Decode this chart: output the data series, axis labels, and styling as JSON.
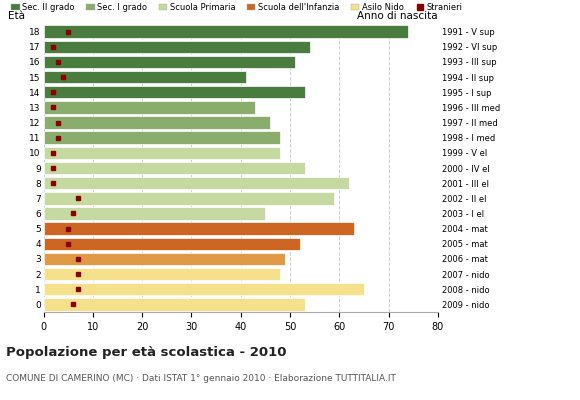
{
  "ages": [
    18,
    17,
    16,
    15,
    14,
    13,
    12,
    11,
    10,
    9,
    8,
    7,
    6,
    5,
    4,
    3,
    2,
    1,
    0
  ],
  "years": [
    "1991 - V sup",
    "1992 - VI sup",
    "1993 - III sup",
    "1994 - II sup",
    "1995 - I sup",
    "1996 - III med",
    "1997 - II med",
    "1998 - I med",
    "1999 - V el",
    "2000 - IV el",
    "2001 - III el",
    "2002 - II el",
    "2003 - I el",
    "2004 - mat",
    "2005 - mat",
    "2006 - mat",
    "2007 - nido",
    "2008 - nido",
    "2009 - nido"
  ],
  "values": [
    74,
    54,
    51,
    41,
    53,
    43,
    46,
    48,
    48,
    53,
    62,
    59,
    45,
    63,
    52,
    49,
    48,
    65,
    53
  ],
  "stranieri": [
    5,
    2,
    3,
    4,
    2,
    2,
    3,
    3,
    2,
    2,
    2,
    7,
    6,
    5,
    5,
    7,
    7,
    7,
    6
  ],
  "bar_colors": [
    "#4a7c3f",
    "#4a7c3f",
    "#4a7c3f",
    "#4a7c3f",
    "#4a7c3f",
    "#8aad6e",
    "#8aad6e",
    "#8aad6e",
    "#c5d9a0",
    "#c5d9a0",
    "#c5d9a0",
    "#c5d9a0",
    "#c5d9a0",
    "#cc6622",
    "#cc6622",
    "#e09945",
    "#f5e08b",
    "#f5e08b",
    "#f5e08b"
  ],
  "legend_labels": [
    "Sec. II grado",
    "Sec. I grado",
    "Scuola Primaria",
    "Scuola dell'Infanzia",
    "Asilo Nido",
    "Stranieri"
  ],
  "legend_colors": [
    "#4a7c3f",
    "#8aad6e",
    "#c5d9a0",
    "#cc6622",
    "#f5e08b",
    "#8b0000"
  ],
  "title": "Popolazione per età scolastica - 2010",
  "subtitle": "COMUNE DI CAMERINO (MC) · Dati ISTAT 1° gennaio 2010 · Elaborazione TUTTITALIA.IT",
  "xlabel_eta": "Età",
  "xlabel_anno": "Anno di nascita",
  "xlim": [
    0,
    80
  ],
  "xticks": [
    0,
    10,
    20,
    30,
    40,
    50,
    60,
    70,
    80
  ],
  "stranieri_color": "#8b0000",
  "bar_height": 0.82,
  "background_color": "#ffffff",
  "grid_color": "#cccccc"
}
